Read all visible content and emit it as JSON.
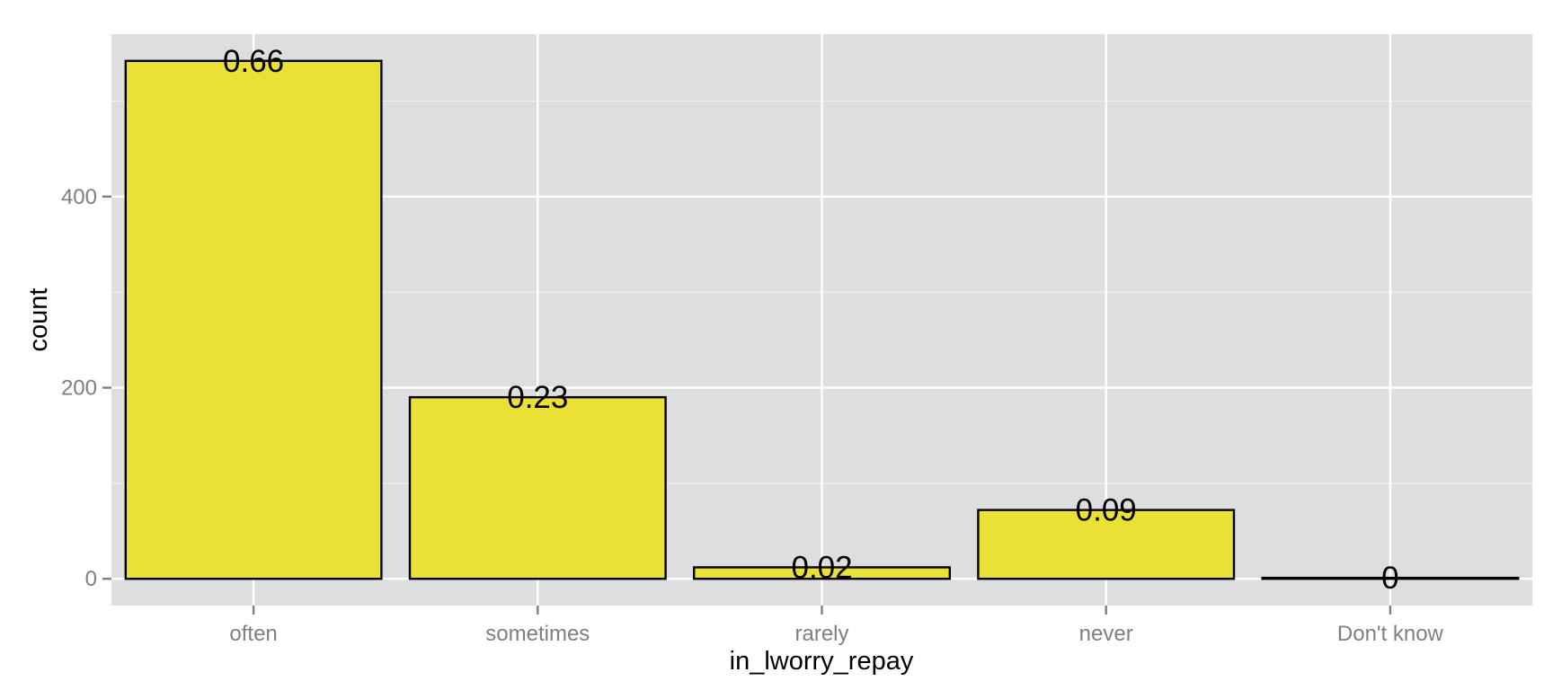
{
  "chart_data": {
    "type": "bar",
    "categories": [
      "often",
      "sometimes",
      "rarely",
      "never",
      "Don't know"
    ],
    "values": [
      542,
      190,
      12,
      72,
      1
    ],
    "labels": [
      "0.66",
      "0.23",
      "0.02",
      "0.09",
      "0"
    ],
    "xlabel": "in_lworry_repay",
    "ylabel": "count",
    "ylim": [
      -28,
      570
    ],
    "yticks": [
      0,
      200,
      400
    ],
    "yticks_minor": [
      100,
      300,
      500
    ],
    "grid": true,
    "colors": {
      "panel": "#dedede",
      "grid": "#ffffff",
      "bar_fill": "#ebe035",
      "bar_stroke": "#000000",
      "tick": "#7f7f7f"
    }
  }
}
